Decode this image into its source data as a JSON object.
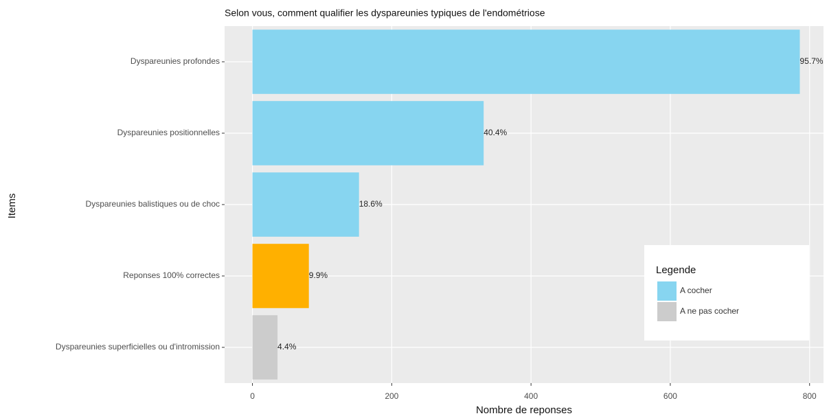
{
  "chart_data": {
    "type": "bar",
    "orientation": "horizontal",
    "title": "Selon vous, comment qualifier les dyspareunies typiques de l'endométriose",
    "x_label": "Nombre de reponses",
    "y_label": "Items",
    "categories": [
      "Dyspareunies profondes",
      "Dyspareunies positionnelles",
      "Dyspareunies balistiques ou de choc",
      "Reponses 100% correctes",
      "Dyspareunies superficielles ou d'intromission"
    ],
    "values": [
      786,
      332,
      153,
      81,
      36
    ],
    "value_labels": [
      "95.7%",
      "40.4%",
      "18.6%",
      "9.9%",
      "4.4%"
    ],
    "colors": [
      "#87d5f0",
      "#87d5f0",
      "#87d5f0",
      "#ffb000",
      "#cccccc"
    ],
    "xlim": [
      -40,
      820
    ],
    "xticks": [
      0,
      200,
      400,
      600,
      800
    ],
    "grid": true,
    "legend": {
      "title": "Legende",
      "position": "bottom-right",
      "entries": [
        {
          "name": "A cocher",
          "color": "#87d5f0"
        },
        {
          "name": "A ne pas cocher",
          "color": "#cccccc"
        }
      ]
    }
  }
}
